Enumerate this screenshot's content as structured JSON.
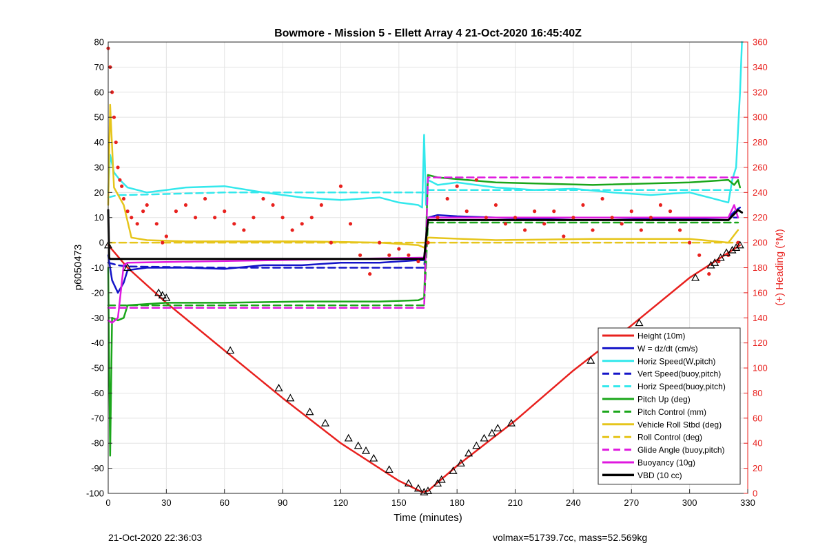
{
  "footer": {
    "timestamp": "21-Oct-2020 22:36:03",
    "stats": "volmax=51739.7cc, mass=52.569kg"
  },
  "chart_data": {
    "type": "line",
    "title": "Bowmore - Mission 5 - Ellett Array 4 21-Oct-2020 16:45:40Z",
    "xlabel": "Time (minutes)",
    "ylabel": "p6050473",
    "y2label": "(+) Heading (°M)",
    "xlim": [
      0,
      330
    ],
    "ylim": [
      -100,
      80
    ],
    "y2lim": [
      0,
      360
    ],
    "xticks": [
      0,
      30,
      60,
      90,
      120,
      150,
      180,
      210,
      240,
      270,
      300,
      330
    ],
    "yticks": [
      80,
      70,
      60,
      50,
      40,
      30,
      20,
      10,
      0,
      -10,
      -20,
      -30,
      -40,
      -50,
      -60,
      -70,
      -80,
      -90,
      -100
    ],
    "y2ticks": [
      360,
      340,
      320,
      300,
      280,
      260,
      240,
      220,
      200,
      180,
      160,
      140,
      120,
      100,
      80,
      60,
      40,
      20,
      0
    ],
    "grid": true,
    "legend_position": "bottom-right",
    "colors": {
      "red": "#e8211e",
      "blue": "#1414c8",
      "cyan": "#33e8ec",
      "green": "#1aa61a",
      "yellow": "#e6c51b",
      "magenta": "#df18df",
      "black": "#000000"
    },
    "series": [
      {
        "name": "Height (10m)",
        "color": "red",
        "dash": false,
        "x": [
          0,
          10,
          30,
          60,
          90,
          120,
          150,
          162,
          165,
          180,
          210,
          240,
          270,
          300,
          310,
          320,
          326
        ],
        "y": [
          -1,
          -10,
          -24,
          -43,
          -62,
          -80,
          -95,
          -99.5,
          -99,
          -89,
          -71,
          -51,
          -33,
          -14,
          -9,
          -4,
          -1
        ]
      },
      {
        "name": "W = dz/dt (cm/s)",
        "color": "blue",
        "dash": false,
        "x": [
          0,
          2,
          5,
          8,
          10,
          20,
          40,
          60,
          80,
          100,
          120,
          140,
          160,
          163,
          165,
          170,
          180,
          200,
          220,
          240,
          260,
          280,
          300,
          320,
          324,
          326
        ],
        "y": [
          -5,
          -15,
          -20,
          -16,
          -11,
          -10,
          -10,
          -10.5,
          -9,
          -9,
          -8,
          -8,
          -7,
          -7,
          10,
          11,
          10.5,
          10,
          9.5,
          10,
          10,
          9.5,
          9.5,
          10,
          13,
          14
        ]
      },
      {
        "name": "Horiz Speed(W,pitch)",
        "color": "cyan",
        "dash": false,
        "x": [
          0,
          1,
          3,
          6,
          10,
          15,
          20,
          30,
          40,
          60,
          80,
          100,
          120,
          140,
          150,
          160,
          162,
          163,
          164,
          165,
          170,
          180,
          200,
          220,
          240,
          260,
          280,
          300,
          310,
          320,
          322,
          324,
          326,
          327
        ],
        "y": [
          20,
          35,
          28,
          25,
          22,
          21,
          20,
          21,
          22,
          22.5,
          20,
          18,
          17,
          18,
          16,
          15,
          14,
          43,
          15,
          25,
          23,
          24,
          22,
          21,
          21.5,
          20,
          19,
          20,
          18,
          16,
          25,
          30,
          60,
          80
        ]
      },
      {
        "name": "Vert Speed(buoy,pitch)",
        "color": "blue",
        "dash": true,
        "x": [
          0,
          5,
          10,
          60,
          163,
          165,
          220,
          325
        ],
        "y": [
          -8,
          -9,
          -9.5,
          -10,
          -10,
          10,
          10,
          10
        ]
      },
      {
        "name": "Horiz Speed(buoy,pitch)",
        "color": "cyan",
        "dash": true,
        "x": [
          0,
          5,
          10,
          60,
          163,
          165,
          220,
          280,
          325
        ],
        "y": [
          18,
          19,
          19,
          20,
          20,
          21,
          21,
          21,
          21
        ]
      },
      {
        "name": "Pitch Up (deg)",
        "color": "green",
        "dash": false,
        "x": [
          0,
          1,
          2,
          5,
          8,
          10,
          30,
          60,
          100,
          140,
          160,
          163,
          165,
          170,
          200,
          250,
          300,
          320,
          323,
          325,
          326
        ],
        "y": [
          -10,
          -85,
          -30,
          -31,
          -30,
          -25,
          -24,
          -24,
          -23.5,
          -23.5,
          -23,
          -22,
          27,
          26,
          24,
          23,
          24,
          25,
          23,
          25,
          22
        ]
      },
      {
        "name": "Pitch Control (mm)",
        "color": "green",
        "dash": true,
        "x": [
          0,
          163,
          165,
          325
        ],
        "y": [
          -25,
          -25,
          8,
          8
        ]
      },
      {
        "name": "Vehicle Roll Stbd (deg)",
        "color": "yellow",
        "dash": false,
        "x": [
          0,
          1,
          3,
          8,
          12,
          20,
          40,
          60,
          100,
          140,
          160,
          163,
          165,
          200,
          250,
          300,
          320,
          325
        ],
        "y": [
          15,
          55,
          22,
          15,
          2,
          1,
          0.5,
          0.5,
          0.5,
          0,
          -1,
          -2,
          2,
          1,
          1.5,
          1.5,
          0,
          5
        ]
      },
      {
        "name": "Roll Control (deg)",
        "color": "yellow",
        "dash": true,
        "x": [
          0,
          325
        ],
        "y": [
          0,
          0
        ]
      },
      {
        "name": "Glide Angle (buoy,pitch)",
        "color": "magenta",
        "dash": true,
        "x": [
          0,
          163,
          165,
          325
        ],
        "y": [
          -26,
          -26,
          26,
          26
        ]
      },
      {
        "name": "Buoyancy (10g)",
        "color": "magenta",
        "dash": false,
        "x": [
          0,
          2,
          5,
          8,
          10,
          163,
          165,
          320,
          323,
          325
        ],
        "y": [
          -31,
          -32,
          -30,
          -9,
          -8,
          -6,
          10,
          10,
          15,
          10
        ]
      },
      {
        "name": "VBD (10 cc)",
        "color": "black",
        "dash": false,
        "x": [
          0,
          0.5,
          1,
          163,
          165,
          320,
          325,
          327
        ],
        "y": [
          13,
          -6,
          -6.5,
          -6.5,
          9,
          9,
          13,
          12
        ]
      }
    ],
    "heading_points": {
      "name": "Heading (°M)",
      "color": "red",
      "axis": "right",
      "x": [
        0,
        1,
        2,
        3,
        4,
        5,
        6,
        7,
        8,
        10,
        12,
        15,
        18,
        20,
        25,
        28,
        30,
        35,
        40,
        45,
        50,
        55,
        60,
        65,
        70,
        75,
        80,
        85,
        90,
        95,
        100,
        105,
        110,
        115,
        120,
        125,
        130,
        135,
        140,
        145,
        150,
        155,
        160,
        165,
        170,
        175,
        180,
        185,
        190,
        195,
        200,
        205,
        210,
        215,
        220,
        225,
        230,
        235,
        240,
        245,
        250,
        255,
        260,
        265,
        270,
        275,
        280,
        285,
        290,
        295,
        300,
        305,
        310,
        315,
        320,
        325
      ],
      "y": [
        355,
        340,
        320,
        300,
        280,
        260,
        250,
        245,
        235,
        225,
        220,
        215,
        225,
        230,
        215,
        200,
        205,
        225,
        230,
        220,
        235,
        220,
        225,
        215,
        210,
        220,
        235,
        230,
        220,
        210,
        215,
        220,
        230,
        200,
        245,
        215,
        190,
        175,
        200,
        190,
        195,
        190,
        185,
        200,
        220,
        235,
        245,
        225,
        250,
        220,
        230,
        215,
        220,
        210,
        225,
        215,
        225,
        205,
        220,
        230,
        210,
        235,
        220,
        215,
        225,
        210,
        220,
        230,
        225,
        210,
        200,
        190,
        175,
        185,
        190,
        200
      ]
    },
    "height_markers": {
      "x": [
        0,
        10,
        26,
        28,
        30,
        63,
        88,
        94,
        104,
        112,
        124,
        129,
        133,
        137,
        145,
        155,
        160,
        163,
        165,
        170,
        172,
        178,
        182,
        186,
        190,
        194,
        198,
        201,
        208,
        249,
        274,
        303,
        311,
        313,
        316,
        319,
        322,
        324,
        326
      ],
      "y": [
        -1,
        -10,
        -20,
        -21,
        -22,
        -43,
        -58,
        -62,
        -67.5,
        -72,
        -78,
        -81,
        -83,
        -86,
        -90.5,
        -96,
        -98,
        -99.5,
        -99,
        -96,
        -94.5,
        -91,
        -88,
        -84,
        -81,
        -78,
        -76,
        -74,
        -72,
        -47,
        -32,
        -14,
        -9,
        -8,
        -6,
        -4,
        -3,
        -2,
        -1
      ]
    }
  }
}
